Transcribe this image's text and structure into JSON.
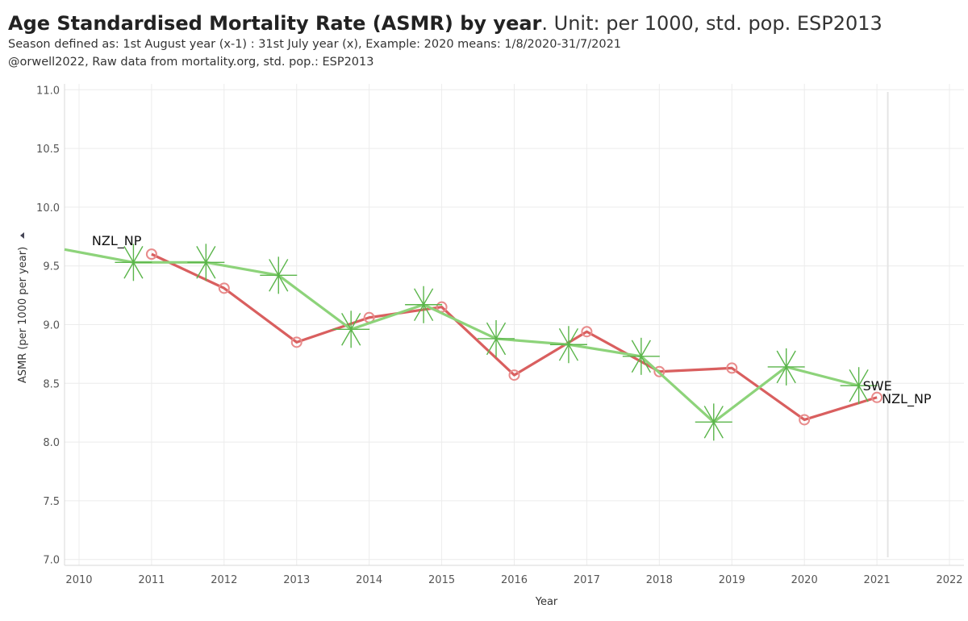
{
  "header": {
    "title_bold": "Age Standardised Mortality Rate (ASMR) by year",
    "title_rest": ". Unit: per 1000, std. pop. ESP2013",
    "subtitle1": "Season defined as: 1st August year (x-1) : 31st July  year (x), Example: 2020 means: 1/8/2020-31/7/2021",
    "subtitle2": "@orwell2022,  Raw data from mortality.org, std. pop.: ESP2013"
  },
  "colors": {
    "nzl": "#d95f5f",
    "swe": "#8dd37a",
    "swe_marker": "#5ab54a",
    "grid": "#ececec"
  },
  "chart_data": {
    "type": "line",
    "xlabel": "Year",
    "ylabel": "ASMR (per 1000 per year)",
    "xlim": [
      2009.8,
      2022.2
    ],
    "ylim": [
      6.95,
      11.05
    ],
    "x_ticks": [
      "2010",
      "2011",
      "2012",
      "2013",
      "2014",
      "2015",
      "2016",
      "2017",
      "2018",
      "2019",
      "2020",
      "2021",
      "2022"
    ],
    "y_ticks": [
      "7.0",
      "7.5",
      "8.0",
      "8.5",
      "9.0",
      "9.5",
      "10.0",
      "10.5",
      "11.0"
    ],
    "grid": true,
    "series": [
      {
        "name": "NZL_NP",
        "marker": "circle",
        "x": [
          2011,
          2012,
          2013,
          2014,
          2015,
          2016,
          2017,
          2018,
          2019,
          2020,
          2021
        ],
        "values": [
          9.6,
          9.31,
          8.85,
          9.06,
          9.15,
          8.57,
          8.94,
          8.6,
          8.63,
          8.19,
          8.38
        ]
      },
      {
        "name": "SWE",
        "marker": "star",
        "x": [
          2009.8,
          2010.75,
          2011.75,
          2012.75,
          2013.75,
          2014.75,
          2015.75,
          2016.75,
          2017.75,
          2018.75,
          2019.75,
          2020.75
        ],
        "values": [
          9.64,
          9.53,
          9.53,
          9.42,
          8.96,
          9.17,
          8.88,
          8.83,
          8.73,
          8.17,
          8.64,
          8.48
        ]
      }
    ],
    "labels": {
      "nzl_start": "NZL_NP",
      "nzl_end": "NZL_NP",
      "swe_end": "SWE"
    }
  }
}
